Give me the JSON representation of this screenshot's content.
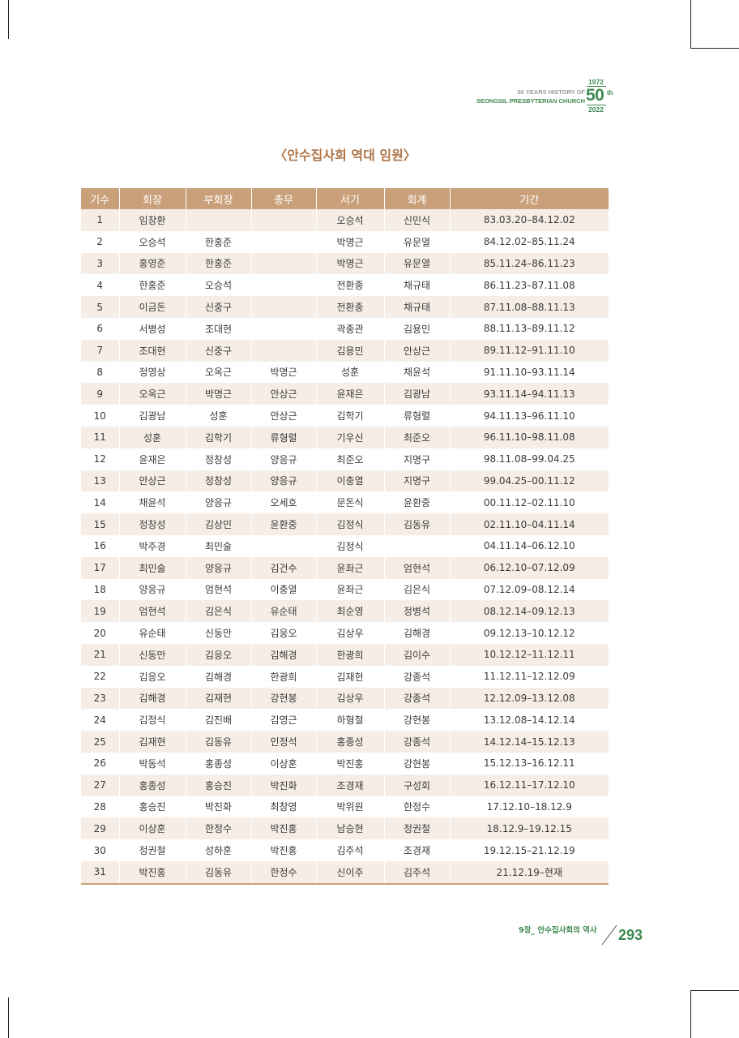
{
  "header": {
    "history_line": "50 YEARS HISTORY OF",
    "church_line": "SEONGSIL PRESBYTERIAN CHURCH",
    "badge_year_start": "1972",
    "badge_number": "50",
    "badge_suffix": "th",
    "badge_year_end": "2022"
  },
  "title": "〈안수집사회 역대 임원〉",
  "table": {
    "columns": [
      "기수",
      "회장",
      "부회장",
      "총무",
      "서기",
      "회계",
      "기간"
    ],
    "rows": [
      [
        "1",
        "임창환",
        "",
        "",
        "오승석",
        "신민식",
        "83.03.20–84.12.02"
      ],
      [
        "2",
        "오승석",
        "한홍준",
        "",
        "박명근",
        "유문열",
        "84.12.02–85.11.24"
      ],
      [
        "3",
        "홍영준",
        "한홍준",
        "",
        "박명근",
        "유문열",
        "85.11.24–86.11.23"
      ],
      [
        "4",
        "한홍준",
        "오승석",
        "",
        "전환종",
        "채규태",
        "86.11.23–87.11.08"
      ],
      [
        "5",
        "이금돈",
        "신중구",
        "",
        "전환종",
        "채규태",
        "87.11.08–88.11.13"
      ],
      [
        "6",
        "서병성",
        "조대현",
        "",
        "곽종관",
        "김용민",
        "88.11.13–89.11.12"
      ],
      [
        "7",
        "조대현",
        "신중구",
        "",
        "김용민",
        "안상근",
        "89.11.12–91.11.10"
      ],
      [
        "8",
        "정영상",
        "오옥근",
        "박명근",
        "성훈",
        "채윤석",
        "91.11.10–93.11.14"
      ],
      [
        "9",
        "오옥근",
        "박명근",
        "안상근",
        "윤재은",
        "김광남",
        "93.11.14–94.11.13"
      ],
      [
        "10",
        "김광남",
        "성훈",
        "안상근",
        "김학기",
        "류형렬",
        "94.11.13–96.11.10"
      ],
      [
        "11",
        "성훈",
        "김학기",
        "류형렬",
        "기우신",
        "최준오",
        "96.11.10–98.11.08"
      ],
      [
        "12",
        "윤재은",
        "정창성",
        "양응규",
        "최준오",
        "지명구",
        "98.11.08–99.04.25"
      ],
      [
        "13",
        "안상근",
        "정창성",
        "양응규",
        "이충열",
        "지명구",
        "99.04.25–00.11.12"
      ],
      [
        "14",
        "채윤석",
        "양응규",
        "오세호",
        "문돈식",
        "윤환중",
        "00.11.12–02.11.10"
      ],
      [
        "15",
        "정창성",
        "김상민",
        "윤환중",
        "김정식",
        "김동유",
        "02.11.10–04.11.14"
      ],
      [
        "16",
        "박주경",
        "최민술",
        "",
        "김정식",
        "",
        "04.11.14–06.12.10"
      ],
      [
        "17",
        "최민술",
        "양응규",
        "김건수",
        "윤좌근",
        "엄현석",
        "06.12.10–07.12.09"
      ],
      [
        "18",
        "양응규",
        "엄현석",
        "이충열",
        "윤좌근",
        "김은식",
        "07.12.09–08.12.14"
      ],
      [
        "19",
        "엄현석",
        "김은식",
        "유순태",
        "최순영",
        "정병석",
        "08.12.14–09.12.13"
      ],
      [
        "20",
        "유순태",
        "신동만",
        "김응오",
        "김상우",
        "김해경",
        "09.12.13–10.12.12"
      ],
      [
        "21",
        "신동만",
        "김응오",
        "김해경",
        "한광희",
        "김이수",
        "10.12.12–11.12.11"
      ],
      [
        "22",
        "김응오",
        "김해경",
        "한광희",
        "김재헌",
        "강종석",
        "11.12.11–12.12.09"
      ],
      [
        "23",
        "김해경",
        "김재현",
        "강현봉",
        "김상우",
        "강종석",
        "12.12.09–13.12.08"
      ],
      [
        "24",
        "김정식",
        "김진배",
        "김영근",
        "하형철",
        "강현봉",
        "13.12.08–14.12.14"
      ],
      [
        "25",
        "김재현",
        "김동유",
        "인정석",
        "홍종성",
        "강종석",
        "14.12.14–15.12.13"
      ],
      [
        "26",
        "박동석",
        "홍종성",
        "이상훈",
        "박진홍",
        "강현봉",
        "15.12.13–16.12.11"
      ],
      [
        "27",
        "홍종성",
        "홍승진",
        "박진화",
        "조경재",
        "구성회",
        "16.12.11–17.12.10"
      ],
      [
        "28",
        "홍승진",
        "박진화",
        "최창영",
        "박위원",
        "한정수",
        "17.12.10–18.12.9"
      ],
      [
        "29",
        "이상훈",
        "한정수",
        "박진홍",
        "남승현",
        "정권철",
        "18.12.9–19.12.15"
      ],
      [
        "30",
        "정권철",
        "성하훈",
        "박진홍",
        "김주석",
        "조경재",
        "19.12.15–21.12.19"
      ],
      [
        "31",
        "박진홍",
        "김동유",
        "한정수",
        "신이주",
        "김주석",
        "21.12.19–현재"
      ]
    ]
  },
  "footer": {
    "chapter": "9장_ 안수집사회의 역사",
    "page_number": "293"
  },
  "colors": {
    "header_fill": "#c9a07a",
    "stripe_fill": "#f6eee6",
    "title_color": "#b07548",
    "accent_green": "#3f8a52"
  }
}
